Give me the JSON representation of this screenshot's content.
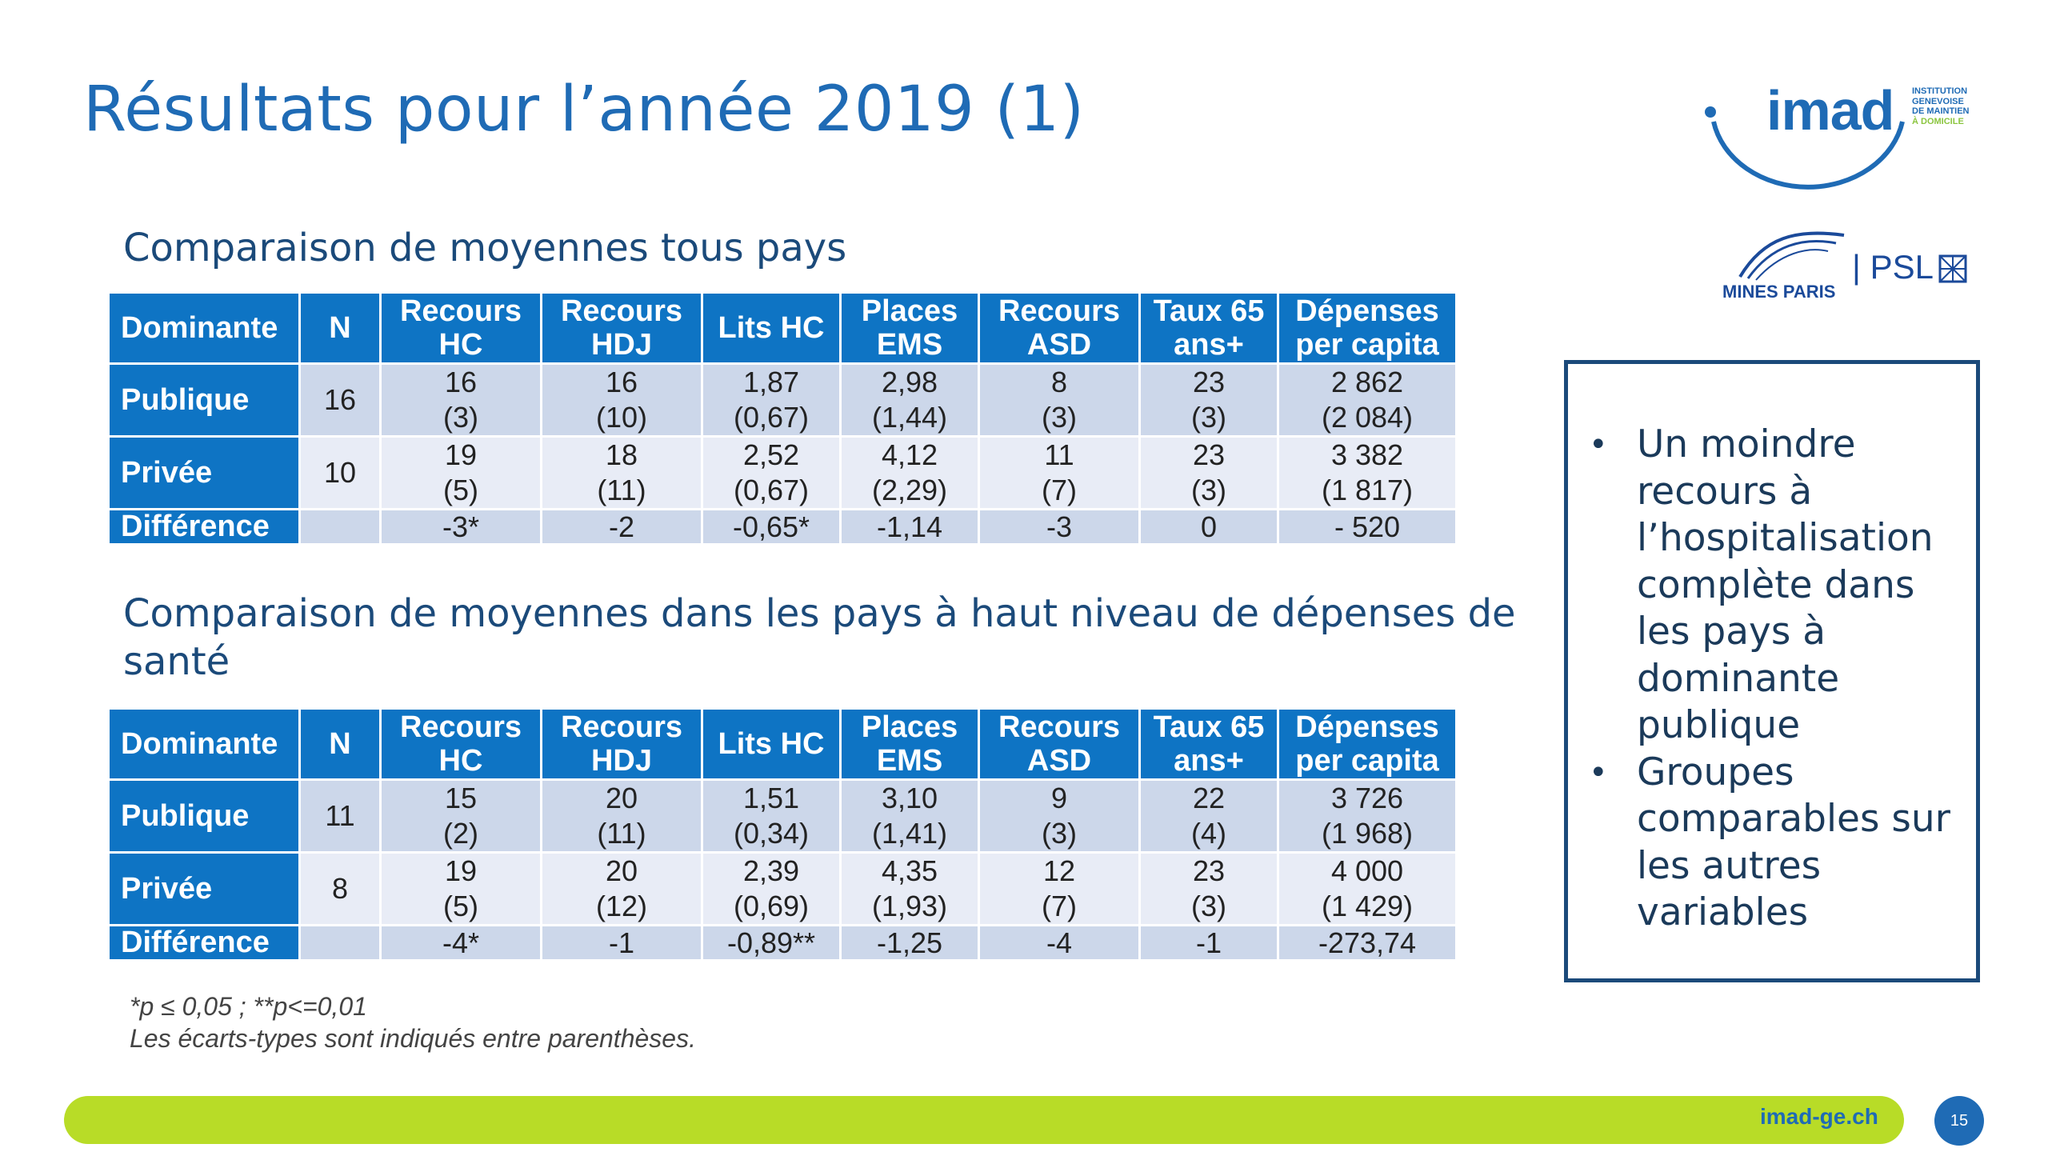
{
  "title": "Résultats pour l’année 2019 (1)",
  "section1": {
    "heading": "Comparaison de moyennes tous pays"
  },
  "section2": {
    "heading": "Comparaison de moyennes dans les pays à haut niveau de dépenses de santé"
  },
  "table_headers": [
    [
      "Dominante"
    ],
    [
      "N"
    ],
    [
      "Recours",
      "HC"
    ],
    [
      "Recours",
      "HDJ"
    ],
    [
      "Lits HC"
    ],
    [
      "Places",
      "EMS"
    ],
    [
      "Recours",
      "ASD"
    ],
    [
      "Taux 65",
      "ans+"
    ],
    [
      "Dépenses",
      "per capita"
    ]
  ],
  "table1": {
    "rows": [
      {
        "label": "Publique",
        "n": "16",
        "cells": [
          [
            "16",
            "(3)"
          ],
          [
            "16",
            "(10)"
          ],
          [
            "1,87",
            "(0,67)"
          ],
          [
            "2,98",
            "(1,44)"
          ],
          [
            "8",
            "(3)"
          ],
          [
            "23",
            "(3)"
          ],
          [
            "2 862",
            "(2 084)"
          ]
        ]
      },
      {
        "label": "Privée",
        "n": "10",
        "cells": [
          [
            "19",
            "(5)"
          ],
          [
            "18",
            "(11)"
          ],
          [
            "2,52",
            "(0,67)"
          ],
          [
            "4,12",
            "(2,29)"
          ],
          [
            "11",
            "(7)"
          ],
          [
            "23",
            "(3)"
          ],
          [
            "3 382",
            "(1 817)"
          ]
        ]
      }
    ],
    "diff": {
      "label": "Différence",
      "n": "",
      "cells": [
        "-3*",
        "-2",
        "-0,65*",
        "-1,14",
        "-3",
        "0",
        "- 520"
      ]
    }
  },
  "table2": {
    "rows": [
      {
        "label": "Publique",
        "n": "11",
        "cells": [
          [
            "15",
            "(2)"
          ],
          [
            "20",
            "(11)"
          ],
          [
            "1,51",
            "(0,34)"
          ],
          [
            "3,10",
            "(1,41)"
          ],
          [
            "9",
            "(3)"
          ],
          [
            "22",
            "(4)"
          ],
          [
            "3 726",
            "(1 968)"
          ]
        ]
      },
      {
        "label": "Privée",
        "n": "8",
        "cells": [
          [
            "19",
            "(5)"
          ],
          [
            "20",
            "(12)"
          ],
          [
            "2,39",
            "(0,69)"
          ],
          [
            "4,35",
            "(1,93)"
          ],
          [
            "12",
            "(7)"
          ],
          [
            "23",
            "(3)"
          ],
          [
            "4 000",
            "(1 429)"
          ]
        ]
      }
    ],
    "diff": {
      "label": "Différence",
      "n": "",
      "cells": [
        "-4*",
        "-1",
        "-0,89**",
        "-1,25",
        "-4",
        "-1",
        "-273,74"
      ]
    }
  },
  "notes": [
    "*p ≤ 0,05 ; **p<=0,01",
    "Les écarts-types sont indiqués entre parenthèses."
  ],
  "summary_box": {
    "bullet": "•",
    "items": [
      [
        "Un moindre",
        "recours à",
        "l’hospitalisation",
        "complète dans",
        "les pays à",
        "dominante",
        "publique"
      ],
      [
        "Groupes",
        "comparables sur",
        "les autres",
        "variables"
      ]
    ]
  },
  "logos": {
    "imad": {
      "word": "imad",
      "tagline": [
        "INSTITUTION",
        "GENEVOISE",
        "DE MAINTIEN",
        "À DOMICILE"
      ]
    },
    "mines": {
      "word": "MINES PARIS",
      "psl": "| PSL"
    }
  },
  "footer": {
    "link": "imad-ge.ch",
    "page_number": "15"
  },
  "colors": {
    "primary_blue": "#0e74c4",
    "title_blue": "#1f6bb5",
    "row_light": "#ccd7ea",
    "row_lighter": "#e8ecf6",
    "footer_green": "#b8dc27"
  }
}
